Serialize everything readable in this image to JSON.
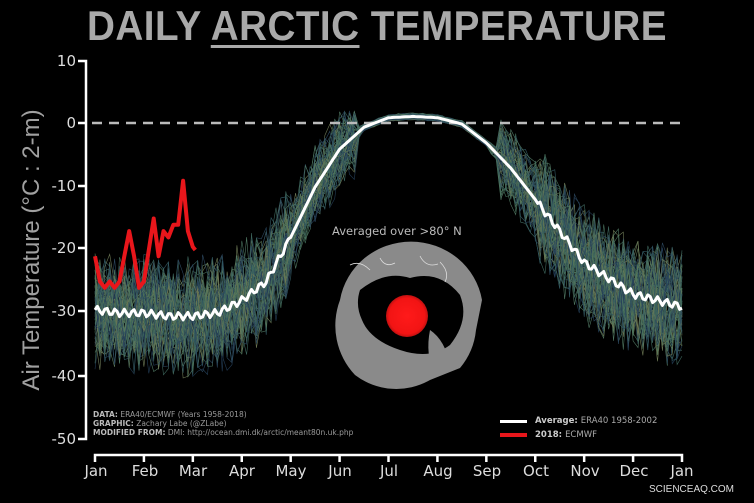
{
  "title": {
    "prefix": "DAILY",
    "underlined": "ARCTIC",
    "suffix": "TEMPERATURE"
  },
  "ylabel": "Air Temperature (°C : 2-m)",
  "yticks": [
    "10",
    "0",
    "-10",
    "-20",
    "-30",
    "-40",
    "-50"
  ],
  "xticks": [
    "Jan",
    "Feb",
    "Mar",
    "Apr",
    "May",
    "Jun",
    "Jul",
    "Aug",
    "Sep",
    "Oct",
    "Nov",
    "Dec",
    "Jan"
  ],
  "credits": {
    "data_label": "DATA:",
    "data_value": "ERA40/ECMWF (Years 1958-2018)",
    "graphic_label": "GRAPHIC:",
    "graphic_value": "Zachary Labe (@ZLabe)",
    "modified_label": "MODIFIED FROM:",
    "modified_value": "DMI: http://ocean.dmi.dk/arctic/meant80n.uk.php"
  },
  "legend": {
    "average_label": "Average:",
    "average_value": "ERA40 1958-2002",
    "average_color": "#ffffff",
    "y2018_label": "2018:",
    "y2018_value": "ECMWF",
    "y2018_color": "#e8161b"
  },
  "map_label": "Averaged over >80° N",
  "watermark": "SCIENCEAQ.COM",
  "colors": {
    "background": "#000000",
    "average": "#ffffff",
    "current": "#e8161b",
    "spaghetti": "#7fc9a8",
    "zero_line": "#bbbbbb",
    "map_land": "#8a8a8a"
  },
  "chart_data": {
    "type": "line",
    "title": "DAILY ARCTIC TEMPERATURE",
    "xlabel": "",
    "ylabel": "Air Temperature (°C : 2-m)",
    "ylim": [
      -50,
      10
    ],
    "yticks": [
      10,
      0,
      -10,
      -20,
      -30,
      -40,
      -50
    ],
    "xtick_labels": [
      "Jan",
      "Feb",
      "Mar",
      "Apr",
      "May",
      "Jun",
      "Jul",
      "Aug",
      "Sep",
      "Oct",
      "Nov",
      "Dec",
      "Jan"
    ],
    "grid": false,
    "reference_line": {
      "y": 0,
      "style": "dashed"
    },
    "legend_position": "lower right",
    "annotations": [
      "Averaged over >80° N"
    ],
    "series": [
      {
        "name": "Average: ERA40 1958-2002",
        "color": "#ffffff",
        "x_month": [
          0,
          0.5,
          1,
          1.5,
          2,
          2.5,
          3,
          3.5,
          4,
          4.5,
          5,
          5.5,
          6,
          6.5,
          7,
          7.5,
          8,
          8.5,
          9,
          9.5,
          10,
          10.5,
          11,
          11.5,
          12
        ],
        "values": [
          -29.5,
          -30,
          -30,
          -30.5,
          -30.5,
          -30,
          -28,
          -25,
          -18,
          -10,
          -4,
          -0.5,
          1,
          1.2,
          1,
          0,
          -3,
          -7,
          -12,
          -17,
          -22,
          -24.5,
          -27,
          -28,
          -29
        ]
      },
      {
        "name": "2018: ECMWF",
        "color": "#e8161b",
        "x_month": [
          0,
          0.1,
          0.2,
          0.3,
          0.4,
          0.5,
          0.6,
          0.7,
          0.8,
          0.9,
          1.0,
          1.1,
          1.2,
          1.3,
          1.4,
          1.5,
          1.6,
          1.7,
          1.8,
          1.9,
          2.0,
          2.05
        ],
        "values": [
          -21,
          -25,
          -26,
          -25,
          -26,
          -25,
          -21,
          -17,
          -21,
          -26,
          -25,
          -20,
          -15,
          -21,
          -17,
          -18,
          -16,
          -16,
          -9,
          -17,
          -19.5,
          -20
        ]
      }
    ],
    "spaghetti": {
      "description": "Individual daily temperature traces for years 1958-2018",
      "count_years": 61,
      "envelope_min_winter": -40,
      "envelope_max_winter": -12
    }
  }
}
